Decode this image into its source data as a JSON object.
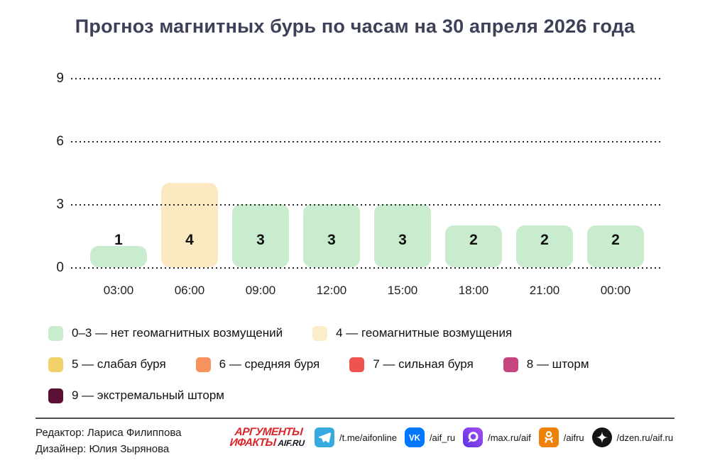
{
  "title": "Прогноз магнитных бурь по часам на 30 апреля 2026 года",
  "chart_data": {
    "type": "bar",
    "title": "Прогноз магнитных бурь по часам на 30 апреля 2026 года",
    "categories": [
      "03:00",
      "06:00",
      "09:00",
      "12:00",
      "15:00",
      "18:00",
      "21:00",
      "00:00"
    ],
    "values": [
      1,
      4,
      3,
      3,
      3,
      2,
      2,
      2
    ],
    "bar_colors": [
      "#c9ecce",
      "#fce9c2",
      "#c9ecce",
      "#c9ecce",
      "#c9ecce",
      "#c9ecce",
      "#c9ecce",
      "#c9ecce"
    ],
    "xlabel": "",
    "ylabel": "",
    "ylim": [
      0,
      9
    ],
    "yticks": [
      0,
      3,
      6,
      9
    ],
    "grid": "horizontal-dotted",
    "value_labels": true,
    "legend_position": "below"
  },
  "legend": {
    "rows": [
      [
        {
          "color": "#c9ecce",
          "label": "0–3 — нет геомагнитных возмущений"
        },
        {
          "color": "#fbedca",
          "label": "4 — геомагнитные возмущения"
        }
      ],
      [
        {
          "color": "#f2d16b",
          "label": "5 — слабая буря"
        },
        {
          "color": "#f6925d",
          "label": "6 — средняя буря"
        },
        {
          "color": "#ef534e",
          "label": "7 — сильная буря"
        },
        {
          "color": "#c64480",
          "label": "8 — шторм"
        }
      ],
      [
        {
          "color": "#5b1033",
          "label": "9 — экстремальный шторм"
        }
      ]
    ]
  },
  "footer": {
    "credits": [
      "Редактор: Лариса Филиппова",
      "Дизайнер: Юлия Зырянова"
    ],
    "logo": {
      "line1": "АРГУМЕНТЫ",
      "line2": "ИФАКТЫ",
      "suffix": "AIF.RU"
    },
    "socials": [
      {
        "icon": "telegram-icon",
        "handle": "/t.me/aifonline",
        "color": "#36a9e1"
      },
      {
        "icon": "vk-icon",
        "handle": "/aif_ru",
        "color": "#0077ff"
      },
      {
        "icon": "max-icon",
        "handle": "/max.ru/aif",
        "color": "#7b40ec"
      },
      {
        "icon": "ok-icon",
        "handle": "/aifru",
        "color": "#ee8208"
      },
      {
        "icon": "dzen-icon",
        "handle": "/dzen.ru/aif.ru",
        "color": "#141414"
      }
    ]
  },
  "colors": {
    "title_text": "#3d4158",
    "axis_text": "#1a1a1a",
    "grid": "#262626"
  }
}
